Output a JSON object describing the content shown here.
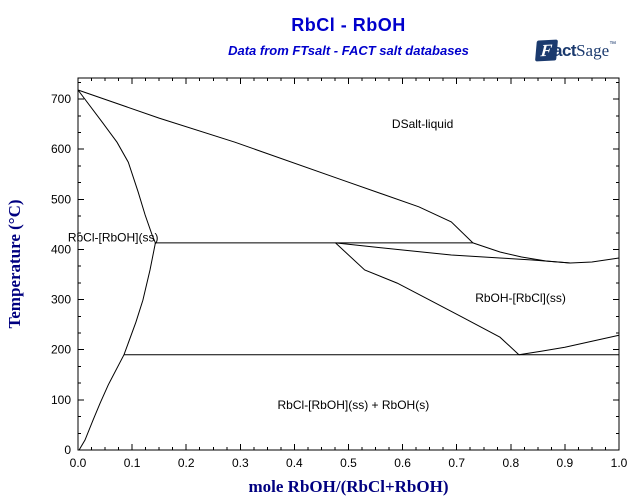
{
  "header": {
    "title": "RbCl - RbOH",
    "subtitle": "Data from FTsalt - FACT salt databases",
    "logo": {
      "f": "F",
      "act": "act",
      "sage": "Sage",
      "tm": "™"
    }
  },
  "colors": {
    "title_blue": "#0000cc",
    "axis_navy": "#000080",
    "logo_navy": "#1b3a6e",
    "line_black": "#000000",
    "background": "#ffffff"
  },
  "chart_data": {
    "type": "line",
    "title": "RbCl - RbOH",
    "subtitle": "Data from FTsalt - FACT salt databases",
    "xlabel": "mole RbOH/(RbCl+RbOH)",
    "ylabel": "Temperature (°C)",
    "xlim": [
      0.0,
      1.0
    ],
    "ylim": [
      0,
      742
    ],
    "x_major_step": 0.1,
    "x_minor_step": 0.025,
    "y_major_step": 100,
    "y_minor_step": 33.333,
    "grid": false,
    "legend": "none",
    "line_color": "#000000",
    "axis_title_color": "#000080",
    "tick_label_color": "#000000",
    "x_tick_labels": [
      "0.0",
      "0.1",
      "0.2",
      "0.3",
      "0.4",
      "0.5",
      "0.6",
      "0.7",
      "0.8",
      "0.9",
      "1.0"
    ],
    "y_tick_labels": [
      "0",
      "100",
      "200",
      "300",
      "400",
      "500",
      "600",
      "700"
    ],
    "series": [
      {
        "name": "rbcl-liquidus",
        "points": [
          [
            0.0,
            718
          ],
          [
            0.15,
            662
          ],
          [
            0.29,
            614
          ],
          [
            0.49,
            538
          ],
          [
            0.63,
            485
          ],
          [
            0.69,
            455
          ],
          [
            0.73,
            413
          ]
        ]
      },
      {
        "name": "rbcl-solidus",
        "points": [
          [
            0.0,
            718
          ],
          [
            0.046,
            652
          ],
          [
            0.072,
            614
          ],
          [
            0.093,
            574
          ],
          [
            0.111,
            515
          ],
          [
            0.124,
            469
          ],
          [
            0.137,
            429
          ],
          [
            0.143,
            413
          ]
        ]
      },
      {
        "name": "peritectic-line",
        "points": [
          [
            0.143,
            413
          ],
          [
            0.73,
            413
          ]
        ]
      },
      {
        "name": "rbcl-solvus",
        "points": [
          [
            0.143,
            413
          ],
          [
            0.133,
            359
          ],
          [
            0.12,
            299
          ],
          [
            0.107,
            255
          ],
          [
            0.085,
            190
          ],
          [
            0.056,
            130
          ],
          [
            0.041,
            94
          ],
          [
            0.028,
            60
          ],
          [
            0.013,
            20
          ],
          [
            0.002,
            0
          ]
        ]
      },
      {
        "name": "rboh-liquidus",
        "points": [
          [
            0.73,
            413
          ],
          [
            0.78,
            395
          ],
          [
            0.82,
            385
          ],
          [
            0.865,
            377
          ],
          [
            0.91,
            373
          ],
          [
            0.95,
            375
          ],
          [
            1.0,
            383
          ]
        ]
      },
      {
        "name": "rboh-solidus",
        "points": [
          [
            0.476,
            413
          ],
          [
            0.6,
            399
          ],
          [
            0.69,
            389
          ],
          [
            0.78,
            383
          ],
          [
            0.84,
            379
          ],
          [
            0.91,
            373
          ]
        ]
      },
      {
        "name": "rboh-solvus",
        "points": [
          [
            0.476,
            413
          ],
          [
            0.53,
            359
          ],
          [
            0.59,
            333
          ],
          [
            0.65,
            299
          ],
          [
            0.71,
            265
          ],
          [
            0.78,
            225
          ],
          [
            0.815,
            190
          ]
        ]
      },
      {
        "name": "eutectoid-line",
        "points": [
          [
            0.085,
            190
          ],
          [
            1.0,
            190
          ]
        ]
      },
      {
        "name": "rboh-transition-boundary",
        "points": [
          [
            0.815,
            190
          ],
          [
            0.856,
            197
          ],
          [
            0.9,
            205
          ],
          [
            0.95,
            217
          ],
          [
            1.0,
            229
          ]
        ]
      }
    ],
    "annotations": [
      {
        "text": "DSalt-liquid",
        "x": 0.637,
        "y": 650
      },
      {
        "text": "RbCl-[RbOH](ss)",
        "x": 0.065,
        "y": 424
      },
      {
        "text": "RbOH-[RbCl](ss)",
        "x": 0.818,
        "y": 303
      },
      {
        "text": "RbCl-[RbOH](ss) + RbOH(s)",
        "x": 0.509,
        "y": 90
      }
    ],
    "key_points": {
      "rbcl_melting_C": 718,
      "rboh_melting_C": 383,
      "invariant_line_C": 413,
      "invariant_x_range": [
        0.143,
        0.73
      ],
      "solidus_liquidus_minimum": {
        "x": 0.91,
        "T": 373
      },
      "eutectoid_line_C": 190,
      "eutectoid_x_range": [
        0.085,
        1.0
      ],
      "rboh_transition_at_x1_C": 229
    }
  }
}
